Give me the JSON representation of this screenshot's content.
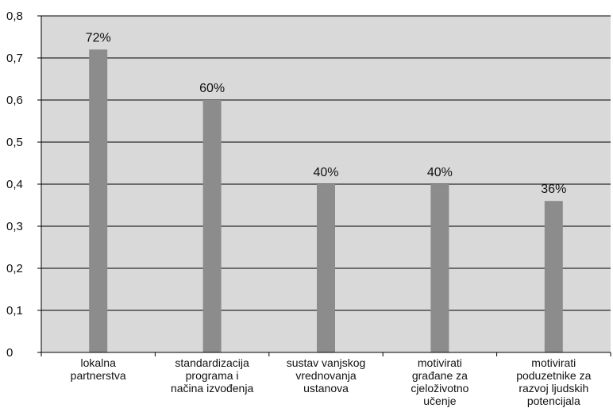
{
  "chart_data": {
    "type": "bar",
    "title": "",
    "xlabel": "",
    "ylabel": "",
    "ylim": [
      0,
      0.8
    ],
    "yticks": [
      0,
      0.1,
      0.2,
      0.3,
      0.4,
      0.5,
      0.6,
      0.7,
      0.8
    ],
    "ytick_labels": [
      "0",
      "0,1",
      "0,2",
      "0,3",
      "0,4",
      "0,5",
      "0,6",
      "0,7",
      "0,8"
    ],
    "grid": true,
    "legend": "none",
    "categories": [
      [
        "lokalna",
        "partnerstva"
      ],
      [
        "standardizacija",
        "programa i",
        "načina izvođenja"
      ],
      [
        "sustav vanjskog",
        "vrednovanja",
        "ustanova"
      ],
      [
        "motivirati",
        "građane za",
        "cjeloživotno",
        "učenje"
      ],
      [
        "motivirati",
        "poduzetnike za",
        "razvoj ljudskih",
        "potencijala"
      ]
    ],
    "values": [
      0.72,
      0.6,
      0.4,
      0.4,
      0.36
    ],
    "data_labels": [
      "72%",
      "60%",
      "40%",
      "40%",
      "36%"
    ],
    "colors": {
      "plot_background": "#d9d9d9",
      "bar": "#8c8c8c",
      "gridline": "#000000",
      "axis": "#000000",
      "text": "#111111"
    }
  }
}
